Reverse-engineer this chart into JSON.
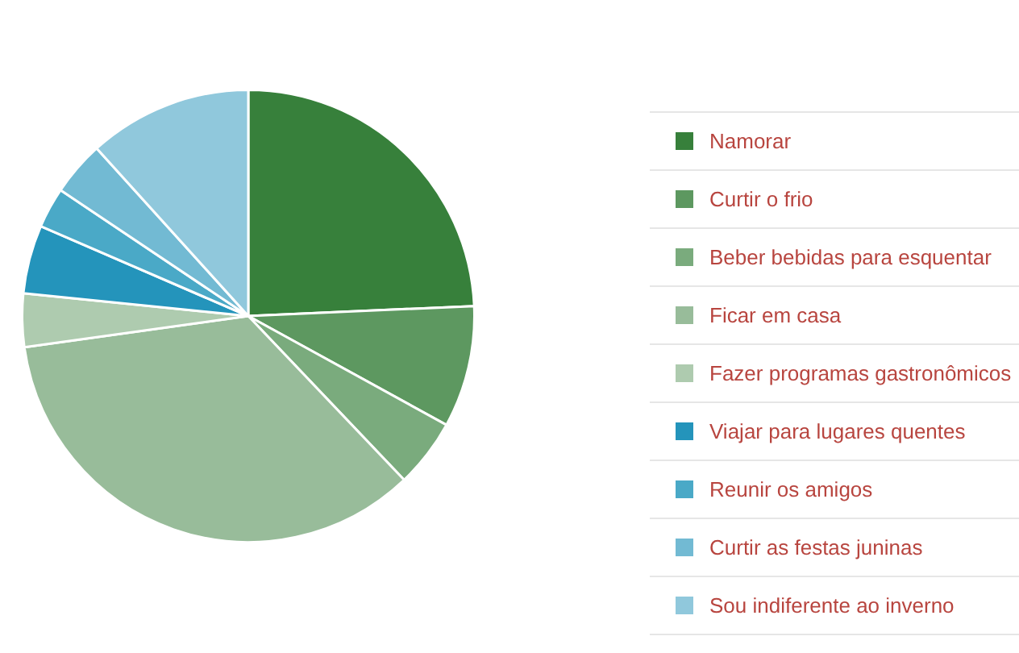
{
  "chart_data": {
    "type": "pie",
    "categories": [
      "Namorar",
      "Curtir o frio",
      "Beber bebidas para esquentar",
      "Ficar em casa",
      "Fazer programas gastronômicos",
      "Viajar para lugares quentes",
      "Reunir os amigos",
      "Curtir as festas juninas",
      "Sou indiferente ao inverno"
    ],
    "values": [
      24.3,
      8.7,
      4.9,
      34.9,
      3.8,
      4.9,
      2.9,
      3.9,
      11.7
    ],
    "colors": [
      "#37803b",
      "#5d9860",
      "#7aab7d",
      "#98bc9a",
      "#aecbaf",
      "#2494bb",
      "#4aa9c7",
      "#72bad3",
      "#90c8dc"
    ],
    "legend": "right"
  }
}
